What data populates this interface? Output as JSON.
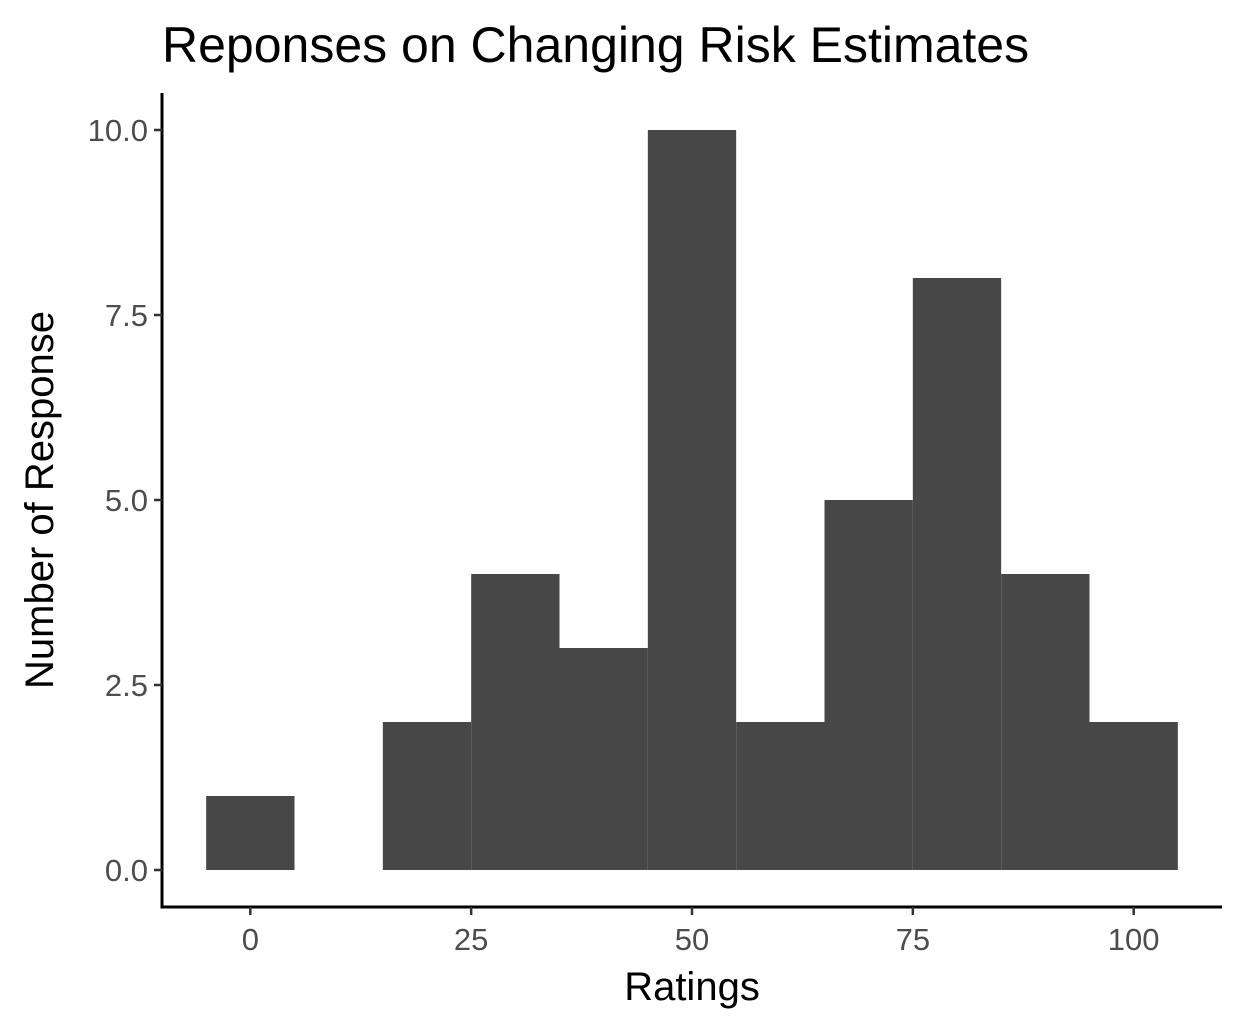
{
  "chart_data": {
    "type": "bar",
    "title": "Reponses on Changing Risk Estimates",
    "xlabel": "Ratings",
    "ylabel": "Number of Response",
    "bins": [
      {
        "x_start": -5,
        "x_end": 5,
        "count": 1
      },
      {
        "x_start": 5,
        "x_end": 15,
        "count": 0
      },
      {
        "x_start": 15,
        "x_end": 25,
        "count": 2
      },
      {
        "x_start": 25,
        "x_end": 35,
        "count": 4
      },
      {
        "x_start": 35,
        "x_end": 45,
        "count": 3
      },
      {
        "x_start": 45,
        "x_end": 55,
        "count": 10
      },
      {
        "x_start": 55,
        "x_end": 65,
        "count": 2
      },
      {
        "x_start": 65,
        "x_end": 75,
        "count": 5
      },
      {
        "x_start": 75,
        "x_end": 85,
        "count": 8
      },
      {
        "x_start": 85,
        "x_end": 95,
        "count": 4
      },
      {
        "x_start": 95,
        "x_end": 105,
        "count": 2
      }
    ],
    "x_ticks": [
      0,
      25,
      50,
      75,
      100
    ],
    "x_tick_labels": [
      "0",
      "25",
      "50",
      "75",
      "100"
    ],
    "y_ticks": [
      0,
      2.5,
      5,
      7.5,
      10
    ],
    "y_tick_labels": [
      "0.0",
      "2.5",
      "5.0",
      "7.5",
      "10.0"
    ],
    "xlim": [
      -10,
      110
    ],
    "ylim": [
      -0.5,
      10.5
    ],
    "bar_color": "#474747",
    "grid": false,
    "legend": "none"
  }
}
